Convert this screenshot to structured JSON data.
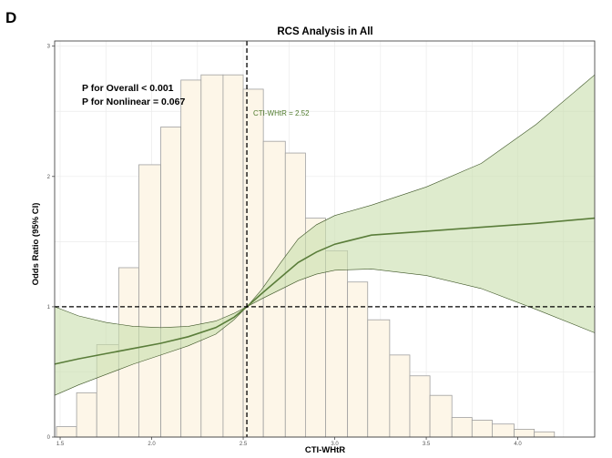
{
  "panel_letter": "D",
  "colors": {
    "histogram_fill": "#fdf6e8",
    "histogram_stroke": "#a0a0a0",
    "ci_fill": "#c9deae",
    "curve": "#5a7d3a",
    "cut_label": "#4f7a2c",
    "grid": "#ebebeb",
    "reference_line": "#000000"
  },
  "chart_data": {
    "type": "line",
    "title": "RCS Analysis in All",
    "xlabel": "CTI-WHtR",
    "ylabel": "Odds Ratio (95% CI)",
    "xlim": [
      1.47,
      4.42
    ],
    "ylim": [
      0,
      3.04
    ],
    "x_ticks": [
      1.5,
      2.0,
      2.5,
      3.0,
      3.5,
      4.0
    ],
    "x_tick_labels": [
      "1.5",
      "2.0",
      "2.5",
      "3.0",
      "3.5",
      "4.0"
    ],
    "y_ticks": [
      0,
      1,
      2,
      3
    ],
    "y_tick_labels": [
      "0",
      "1",
      "2",
      "3"
    ],
    "grid": true,
    "annotations": [
      "P for Overall < 0.001",
      "P for Nonlinear = 0.067"
    ],
    "reference_y": 1,
    "cutoff": {
      "x": 2.52,
      "label": "CTI-WHtR = 2.52"
    },
    "histogram": {
      "bin_edges": [
        1.48,
        1.59,
        1.7,
        1.82,
        1.93,
        2.05,
        2.16,
        2.27,
        2.39,
        2.5,
        2.61,
        2.73,
        2.84,
        2.95,
        3.07,
        3.18,
        3.3,
        3.41,
        3.52,
        3.64,
        3.75,
        3.86,
        3.98,
        4.09,
        4.2,
        4.31
      ],
      "heights": [
        0.08,
        0.34,
        0.71,
        1.3,
        2.09,
        2.38,
        2.74,
        2.78,
        2.78,
        2.67,
        2.27,
        2.18,
        1.68,
        1.43,
        1.19,
        0.9,
        0.63,
        0.47,
        0.32,
        0.15,
        0.13,
        0.1,
        0.06,
        0.04,
        0.0
      ]
    },
    "series": [
      {
        "type": "line",
        "x": [
          1.47,
          1.6,
          1.75,
          1.9,
          2.05,
          2.2,
          2.35,
          2.45,
          2.52,
          2.6,
          2.7,
          2.8,
          2.9,
          3.0,
          3.2,
          3.5,
          3.8,
          4.1,
          4.42
        ],
        "y": [
          0.56,
          0.6,
          0.64,
          0.68,
          0.72,
          0.77,
          0.84,
          0.92,
          1.0,
          1.1,
          1.22,
          1.34,
          1.42,
          1.48,
          1.55,
          1.58,
          1.61,
          1.64,
          1.68
        ]
      }
    ],
    "ci": {
      "x": [
        1.47,
        1.6,
        1.75,
        1.9,
        2.05,
        2.2,
        2.35,
        2.45,
        2.52,
        2.6,
        2.7,
        2.8,
        2.9,
        3.0,
        3.2,
        3.5,
        3.8,
        4.1,
        4.42
      ],
      "lower": [
        0.32,
        0.4,
        0.48,
        0.56,
        0.63,
        0.7,
        0.79,
        0.9,
        1.0,
        1.06,
        1.13,
        1.2,
        1.25,
        1.28,
        1.29,
        1.24,
        1.14,
        0.98,
        0.8
      ],
      "upper": [
        1.0,
        0.93,
        0.88,
        0.85,
        0.84,
        0.85,
        0.89,
        0.95,
        1.0,
        1.13,
        1.33,
        1.52,
        1.63,
        1.7,
        1.78,
        1.92,
        2.1,
        2.4,
        2.78
      ]
    }
  }
}
